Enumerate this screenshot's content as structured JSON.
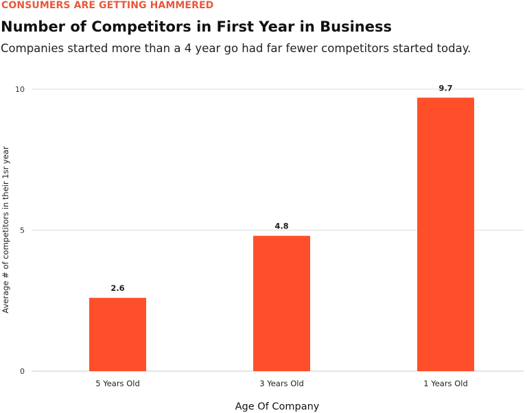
{
  "header": {
    "kicker": "CONSUMERS ARE GETTING HAMMERED",
    "title": "Number of Competitors in First Year in Business",
    "subtitle": "Companies started more than a 4 year go had far fewer competitors started today."
  },
  "chart_data": {
    "type": "bar",
    "categories": [
      "5 Years Old",
      "3 Years Old",
      "1 Years Old"
    ],
    "values": [
      2.6,
      4.8,
      9.7
    ],
    "value_labels": [
      "2.6",
      "4.8",
      "9.7"
    ],
    "xlabel": "Age Of Company",
    "ylabel": "Average # of competitors in their 1sr year",
    "ylim": [
      0,
      10
    ],
    "yticks": [
      0,
      5,
      10
    ],
    "ytick_labels": [
      "0",
      "5",
      "10"
    ],
    "grid": true,
    "bar_color": "#ff4f2a",
    "grid_color": "#dddddd",
    "accent_color": "#e8583a"
  }
}
